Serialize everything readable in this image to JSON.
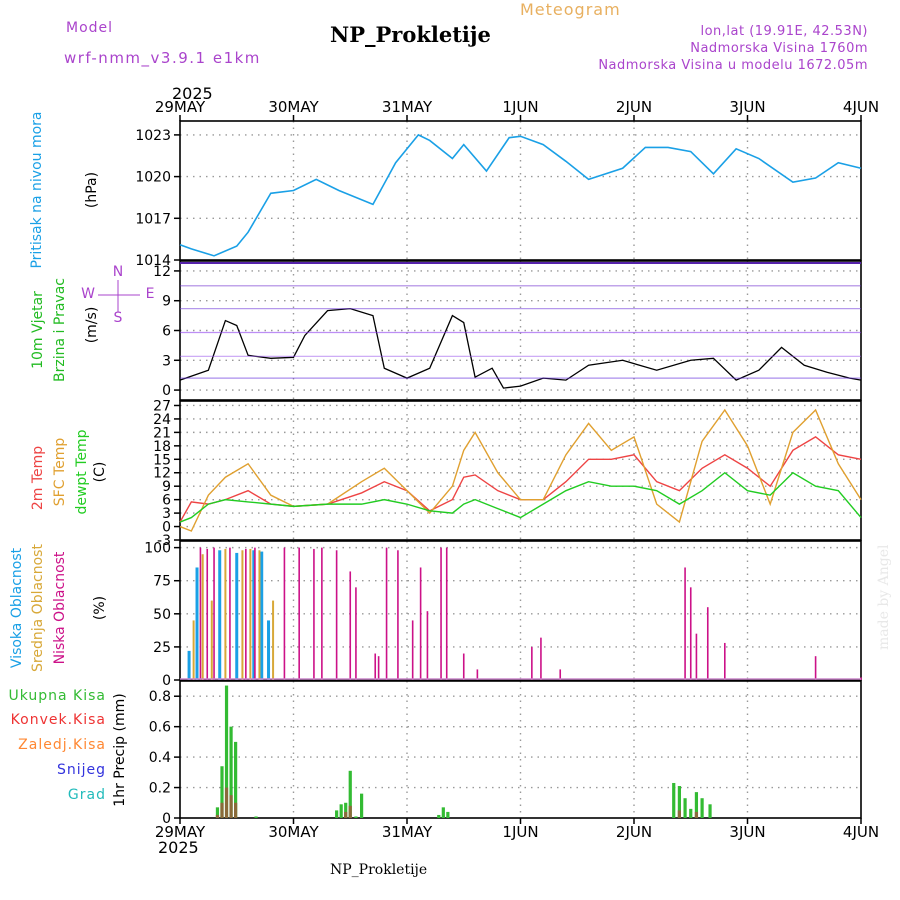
{
  "header": {
    "title": "NP_Prokletije",
    "meteogram": "Meteogram",
    "model_label": "Model",
    "model_name": "wrf-nmm_v3.9.1 e1km",
    "lonlat": "lon,lat (19.91E, 42.53N)",
    "altitude": "Nadmorska Visina 1760m",
    "model_altitude": "Nadmorska Visina u modelu 1672.05m",
    "footer": "NP_Prokletije",
    "watermark": "made by Angel",
    "year": "2025"
  },
  "dates": [
    "29MAY",
    "30MAY",
    "31MAY",
    "1JUN",
    "2JUN",
    "3JUN",
    "4JUN"
  ],
  "colors": {
    "pressure": "#1aa0e6",
    "wind_label": "#22bb22",
    "temp2m": "#ee4444",
    "sfc": "#e0a030",
    "dew": "#22cc22",
    "high": "#1aa0e6",
    "mid": "#d8a838",
    "low": "#cc1188",
    "precip_total": "#33bb33",
    "convective": "#ee3333",
    "frozen": "#ff8833",
    "snow": "#3333dd",
    "hail": "#22bbbb",
    "purple": "#aa44cc"
  },
  "chart_data": [
    {
      "type": "line",
      "name": "pressure",
      "ylabel_blue": "Pritisak na nivou mora",
      "ylabel_black": "(hPa)",
      "yticks": [
        "1014",
        "1017",
        "1020",
        "1023"
      ],
      "ylim": [
        1014,
        1024
      ],
      "x": [
        0,
        0.1,
        0.3,
        0.5,
        0.6,
        0.8,
        1.0,
        1.2,
        1.4,
        1.7,
        1.9,
        2.1,
        2.2,
        2.4,
        2.5,
        2.7,
        2.9,
        3.0,
        3.2,
        3.4,
        3.6,
        3.9,
        4.1,
        4.3,
        4.5,
        4.7,
        4.9,
        5.1,
        5.4,
        5.6,
        5.8,
        6.0
      ],
      "y": [
        1015.1,
        1014.8,
        1014.3,
        1015.0,
        1016.0,
        1018.8,
        1019.0,
        1019.8,
        1019.0,
        1018.0,
        1021.0,
        1023.0,
        1022.6,
        1021.3,
        1022.3,
        1020.4,
        1022.8,
        1022.9,
        1022.3,
        1021.1,
        1019.8,
        1020.6,
        1022.1,
        1022.1,
        1021.8,
        1020.2,
        1022.0,
        1021.3,
        1019.6,
        1019.9,
        1021.0,
        1020.6
      ]
    },
    {
      "type": "line",
      "name": "wind",
      "ylabel_green": "10m Vjetar",
      "ylabel_green2": "Brzina i Pravac",
      "ylabel_black": "(m/s)",
      "compass": {
        "n": "N",
        "s": "S",
        "e": "E",
        "w": "W"
      },
      "yticks": [
        "0",
        "3",
        "6",
        "9",
        "12"
      ],
      "ylim": [
        -1,
        13
      ],
      "x": [
        0,
        0.25,
        0.4,
        0.5,
        0.6,
        0.8,
        1.0,
        1.1,
        1.3,
        1.5,
        1.7,
        1.8,
        2.0,
        2.2,
        2.4,
        2.5,
        2.6,
        2.75,
        2.85,
        3.0,
        3.2,
        3.4,
        3.6,
        3.9,
        4.2,
        4.5,
        4.7,
        4.9,
        5.1,
        5.3,
        5.5,
        5.7,
        5.9,
        6.0
      ],
      "y": [
        1.0,
        2.0,
        7.0,
        6.5,
        3.5,
        3.2,
        3.3,
        5.5,
        8.0,
        8.2,
        7.5,
        2.2,
        1.2,
        2.2,
        7.5,
        6.8,
        1.3,
        2.2,
        0.2,
        0.4,
        1.2,
        1.0,
        2.5,
        3.0,
        2.0,
        3.0,
        3.2,
        1.0,
        2.0,
        4.3,
        2.5,
        1.8,
        1.2,
        1.0
      ]
    },
    {
      "type": "line",
      "name": "temperature",
      "ylabel_red": "2m Temp",
      "ylabel_orange": "SFC Temp",
      "ylabel_green": "dewpt Temp",
      "ylabel_black": "(C)",
      "yticks": [
        "-3",
        "0",
        "3",
        "6",
        "9",
        "12",
        "15",
        "18",
        "21",
        "24",
        "27"
      ],
      "ylim": [
        -3,
        28
      ],
      "series": [
        {
          "name": "2m Temp",
          "x": [
            0,
            0.1,
            0.25,
            0.4,
            0.6,
            0.8,
            1.0,
            1.3,
            1.6,
            1.8,
            2.0,
            2.2,
            2.4,
            2.5,
            2.6,
            2.8,
            3.0,
            3.2,
            3.4,
            3.6,
            3.8,
            4.0,
            4.2,
            4.4,
            4.6,
            4.8,
            5.0,
            5.2,
            5.4,
            5.6,
            5.8,
            6.0
          ],
          "y": [
            1,
            5.5,
            5,
            6,
            8,
            5,
            4.5,
            5,
            7.5,
            10,
            8,
            3.5,
            6,
            11,
            11.5,
            8,
            6,
            6,
            10,
            15,
            15,
            16,
            10,
            8,
            13,
            16,
            13,
            9,
            17,
            20,
            16,
            15
          ]
        },
        {
          "name": "SFC Temp",
          "x": [
            0,
            0.1,
            0.25,
            0.4,
            0.6,
            0.8,
            1.0,
            1.3,
            1.6,
            1.8,
            2.0,
            2.2,
            2.4,
            2.5,
            2.6,
            2.8,
            3.0,
            3.2,
            3.4,
            3.6,
            3.8,
            4.0,
            4.2,
            4.4,
            4.6,
            4.8,
            5.0,
            5.2,
            5.4,
            5.6,
            5.8,
            6.0
          ],
          "y": [
            0,
            -1,
            7,
            11,
            14,
            7,
            4.5,
            5,
            10,
            13,
            8,
            3,
            9,
            17,
            21,
            12,
            6,
            6,
            16,
            23,
            17,
            20,
            5,
            1,
            19,
            26,
            18,
            5,
            21,
            26,
            14,
            6
          ]
        },
        {
          "name": "dewpt Temp",
          "x": [
            0,
            0.1,
            0.25,
            0.4,
            0.6,
            0.8,
            1.0,
            1.3,
            1.6,
            1.8,
            2.0,
            2.2,
            2.4,
            2.5,
            2.6,
            2.8,
            3.0,
            3.2,
            3.4,
            3.6,
            3.8,
            4.0,
            4.2,
            4.4,
            4.6,
            4.8,
            5.0,
            5.2,
            5.4,
            5.6,
            5.8,
            6.0
          ],
          "y": [
            1,
            2,
            5,
            6,
            5.5,
            5,
            4.5,
            5,
            5,
            6,
            5,
            3.5,
            3,
            5,
            6,
            4,
            2,
            5,
            8,
            10,
            9,
            9,
            8,
            5,
            8,
            12,
            8,
            7,
            12,
            9,
            8,
            2
          ]
        }
      ]
    },
    {
      "type": "bar",
      "name": "cloud",
      "ylabel_blue": "Visoka Oblacnost",
      "ylabel_orange": "Srednja Oblacnost",
      "ylabel_magenta": "Niska Oblacnost",
      "ylabel_black": "(%)",
      "yticks": [
        "0",
        "25",
        "50",
        "75",
        "100"
      ],
      "ylim": [
        0,
        105
      ],
      "high": [
        [
          0.08,
          22
        ],
        [
          0.15,
          85
        ],
        [
          0.35,
          98
        ],
        [
          0.5,
          96
        ],
        [
          0.65,
          98
        ],
        [
          0.72,
          97
        ],
        [
          0.78,
          45
        ]
      ],
      "mid": [
        [
          0.12,
          45
        ],
        [
          0.2,
          95
        ],
        [
          0.28,
          60
        ],
        [
          0.4,
          99
        ],
        [
          0.55,
          98
        ],
        [
          0.62,
          99
        ],
        [
          0.7,
          98
        ],
        [
          0.82,
          60
        ]
      ],
      "low": [
        [
          0.18,
          100
        ],
        [
          0.24,
          99
        ],
        [
          0.3,
          100
        ],
        [
          0.44,
          100
        ],
        [
          0.58,
          99
        ],
        [
          0.66,
          100
        ],
        [
          0.92,
          100
        ],
        [
          1.05,
          100
        ],
        [
          1.18,
          99
        ],
        [
          1.25,
          100
        ],
        [
          1.38,
          98
        ],
        [
          1.5,
          82
        ],
        [
          1.55,
          70
        ],
        [
          1.72,
          20
        ],
        [
          1.75,
          18
        ],
        [
          1.82,
          100
        ],
        [
          1.92,
          98
        ],
        [
          2.05,
          45
        ],
        [
          2.12,
          85
        ],
        [
          2.18,
          52
        ],
        [
          2.3,
          100
        ],
        [
          2.35,
          100
        ],
        [
          2.5,
          20
        ],
        [
          2.62,
          8
        ],
        [
          3.1,
          25
        ],
        [
          3.18,
          32
        ],
        [
          3.35,
          8
        ],
        [
          4.45,
          85
        ],
        [
          4.5,
          70
        ],
        [
          4.55,
          35
        ],
        [
          4.65,
          55
        ],
        [
          4.8,
          28
        ],
        [
          5.6,
          18
        ],
        [
          6.0,
          2
        ]
      ]
    },
    {
      "type": "bar",
      "name": "precip",
      "ylabel_total": "Ukupna Kisa",
      "ylabel_conv": "Konvek.Kisa",
      "ylabel_frozen": "Zaledj.Kisa",
      "ylabel_snow": "Snijeg",
      "ylabel_hail": "Grad",
      "ylabel_black": "1hr Precip (mm)",
      "yticks": [
        "0",
        "0.2",
        "0.4",
        "0.6",
        "0.8"
      ],
      "ylim": [
        0,
        0.9
      ],
      "total": [
        [
          0.33,
          0.07
        ],
        [
          0.37,
          0.34
        ],
        [
          0.41,
          0.87
        ],
        [
          0.45,
          0.6
        ],
        [
          0.49,
          0.5
        ],
        [
          0.67,
          0.01
        ],
        [
          1.38,
          0.05
        ],
        [
          1.42,
          0.09
        ],
        [
          1.46,
          0.1
        ],
        [
          1.5,
          0.31
        ],
        [
          1.55,
          0.01
        ],
        [
          1.6,
          0.16
        ],
        [
          2.28,
          0.02
        ],
        [
          2.32,
          0.07
        ],
        [
          2.36,
          0.04
        ],
        [
          4.35,
          0.23
        ],
        [
          4.4,
          0.21
        ],
        [
          4.45,
          0.13
        ],
        [
          4.5,
          0.06
        ],
        [
          4.55,
          0.17
        ],
        [
          4.6,
          0.13
        ],
        [
          4.67,
          0.09
        ]
      ],
      "convective": [
        [
          0.33,
          0.02
        ],
        [
          0.37,
          0.1
        ],
        [
          0.41,
          0.2
        ],
        [
          0.45,
          0.15
        ],
        [
          0.49,
          0.1
        ],
        [
          1.46,
          0.04
        ],
        [
          1.5,
          0.08
        ],
        [
          4.4,
          0.05
        ],
        [
          4.55,
          0.04
        ]
      ]
    }
  ]
}
